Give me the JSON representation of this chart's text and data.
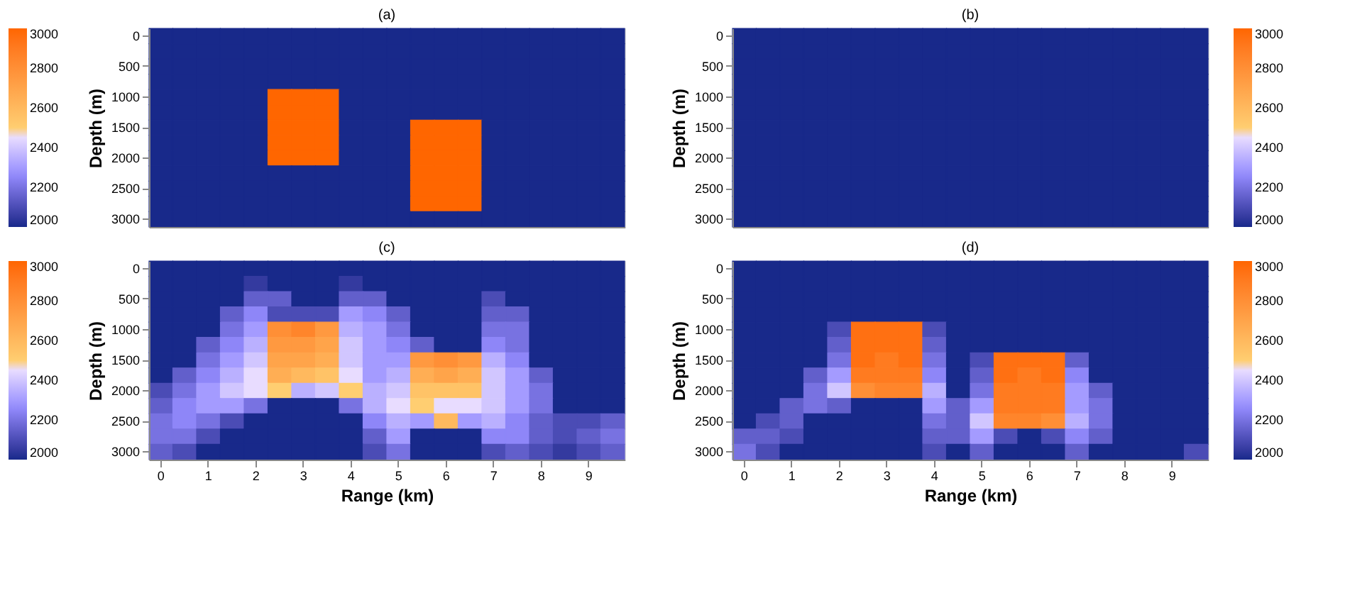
{
  "chart_data": [
    {
      "type": "heatmap",
      "title": "(a)",
      "ylabel": "Depth (m)",
      "tick_labels": "y",
      "clim": [
        2000,
        3000
      ],
      "cticks": [
        2000,
        2200,
        2400,
        2600,
        2800,
        3000
      ],
      "categories": [
        "0",
        null,
        "1",
        null,
        "2",
        null,
        "3",
        null,
        "4",
        null,
        "5",
        null,
        "6",
        null,
        "7",
        null,
        "8",
        null,
        "9",
        null
      ],
      "y_categories": [
        "0",
        null,
        "500",
        null,
        "1000",
        null,
        "1500",
        null,
        "2000",
        null,
        "2500",
        null,
        "3000"
      ],
      "cells": [
        [
          2000,
          2000,
          2000,
          2000,
          2000,
          2000,
          2000,
          2000,
          2000,
          2000,
          2000,
          2000,
          2000,
          2000,
          2000,
          2000,
          2000,
          2000,
          2000,
          2000
        ],
        [
          2000,
          2000,
          2000,
          2000,
          2000,
          2000,
          2000,
          2000,
          2000,
          2000,
          2000,
          2000,
          2000,
          2000,
          2000,
          2000,
          2000,
          2000,
          2000,
          2000
        ],
        [
          2000,
          2000,
          2000,
          2000,
          2000,
          2000,
          2000,
          2000,
          2000,
          2000,
          2000,
          2000,
          2000,
          2000,
          2000,
          2000,
          2000,
          2000,
          2000,
          2000
        ],
        [
          2000,
          2000,
          2000,
          2000,
          2000,
          2000,
          2000,
          2000,
          2000,
          2000,
          2000,
          2000,
          2000,
          2000,
          2000,
          2000,
          2000,
          2000,
          2000,
          2000
        ],
        [
          2000,
          2000,
          2000,
          2000,
          2000,
          3000,
          3000,
          3000,
          2000,
          2000,
          2000,
          2000,
          2000,
          2000,
          2000,
          2000,
          2000,
          2000,
          2000,
          2000
        ],
        [
          2000,
          2000,
          2000,
          2000,
          2000,
          3000,
          3000,
          3000,
          2000,
          2000,
          2000,
          2000,
          2000,
          2000,
          2000,
          2000,
          2000,
          2000,
          2000,
          2000
        ],
        [
          2000,
          2000,
          2000,
          2000,
          2000,
          3000,
          3000,
          3000,
          2000,
          2000,
          2000,
          3000,
          3000,
          3000,
          2000,
          2000,
          2000,
          2000,
          2000,
          2000
        ],
        [
          2000,
          2000,
          2000,
          2000,
          2000,
          3000,
          3000,
          3000,
          2000,
          2000,
          2000,
          3000,
          3000,
          3000,
          2000,
          2000,
          2000,
          2000,
          2000,
          2000
        ],
        [
          2000,
          2000,
          2000,
          2000,
          2000,
          3000,
          3000,
          3000,
          2000,
          2000,
          2000,
          3000,
          3000,
          3000,
          2000,
          2000,
          2000,
          2000,
          2000,
          2000
        ],
        [
          2000,
          2000,
          2000,
          2000,
          2000,
          2000,
          2000,
          2000,
          2000,
          2000,
          2000,
          3000,
          3000,
          3000,
          2000,
          2000,
          2000,
          2000,
          2000,
          2000
        ],
        [
          2000,
          2000,
          2000,
          2000,
          2000,
          2000,
          2000,
          2000,
          2000,
          2000,
          2000,
          3000,
          3000,
          3000,
          2000,
          2000,
          2000,
          2000,
          2000,
          2000
        ],
        [
          2000,
          2000,
          2000,
          2000,
          2000,
          2000,
          2000,
          2000,
          2000,
          2000,
          2000,
          3000,
          3000,
          3000,
          2000,
          2000,
          2000,
          2000,
          2000,
          2000
        ],
        [
          2000,
          2000,
          2000,
          2000,
          2000,
          2000,
          2000,
          2000,
          2000,
          2000,
          2000,
          2000,
          2000,
          2000,
          2000,
          2000,
          2000,
          2000,
          2000,
          2000
        ]
      ]
    },
    {
      "type": "heatmap",
      "title": "(b)",
      "ylabel": "Depth (m)",
      "tick_labels": "y",
      "clim": [
        2000,
        3000
      ],
      "cticks": [
        2000,
        2200,
        2400,
        2600,
        2800,
        3000
      ],
      "categories": [
        "0",
        null,
        "1",
        null,
        "2",
        null,
        "3",
        null,
        "4",
        null,
        "5",
        null,
        "6",
        null,
        "7",
        null,
        "8",
        null,
        "9",
        null
      ],
      "y_categories": [
        "0",
        null,
        "500",
        null,
        "1000",
        null,
        "1500",
        null,
        "2000",
        null,
        "2500",
        null,
        "3000"
      ],
      "cells": [
        [
          2000,
          2000,
          2000,
          2000,
          2000,
          2000,
          2000,
          2000,
          2000,
          2000,
          2000,
          2000,
          2000,
          2000,
          2000,
          2000,
          2000,
          2000,
          2000,
          2000
        ],
        [
          2000,
          2000,
          2000,
          2000,
          2000,
          2000,
          2000,
          2000,
          2000,
          2000,
          2000,
          2000,
          2000,
          2000,
          2000,
          2000,
          2000,
          2000,
          2000,
          2000
        ],
        [
          2000,
          2000,
          2000,
          2000,
          2000,
          2000,
          2000,
          2000,
          2000,
          2000,
          2000,
          2000,
          2000,
          2000,
          2000,
          2000,
          2000,
          2000,
          2000,
          2000
        ],
        [
          2000,
          2000,
          2000,
          2000,
          2000,
          2000,
          2000,
          2000,
          2000,
          2000,
          2000,
          2000,
          2000,
          2000,
          2000,
          2000,
          2000,
          2000,
          2000,
          2000
        ],
        [
          2000,
          2000,
          2000,
          2000,
          2000,
          2000,
          2000,
          2000,
          2000,
          2000,
          2000,
          2000,
          2000,
          2000,
          2000,
          2000,
          2000,
          2000,
          2000,
          2000
        ],
        [
          2000,
          2000,
          2000,
          2000,
          2000,
          2000,
          2000,
          2000,
          2000,
          2000,
          2000,
          2000,
          2000,
          2000,
          2000,
          2000,
          2000,
          2000,
          2000,
          2000
        ],
        [
          2000,
          2000,
          2000,
          2000,
          2000,
          2000,
          2000,
          2000,
          2000,
          2000,
          2000,
          2000,
          2000,
          2000,
          2000,
          2000,
          2000,
          2000,
          2000,
          2000
        ],
        [
          2000,
          2000,
          2000,
          2000,
          2000,
          2000,
          2000,
          2000,
          2000,
          2000,
          2000,
          2000,
          2000,
          2000,
          2000,
          2000,
          2000,
          2000,
          2000,
          2000
        ],
        [
          2000,
          2000,
          2000,
          2000,
          2000,
          2000,
          2000,
          2000,
          2000,
          2000,
          2000,
          2000,
          2000,
          2000,
          2000,
          2000,
          2000,
          2000,
          2000,
          2000
        ],
        [
          2000,
          2000,
          2000,
          2000,
          2000,
          2000,
          2000,
          2000,
          2000,
          2000,
          2000,
          2000,
          2000,
          2000,
          2000,
          2000,
          2000,
          2000,
          2000,
          2000
        ],
        [
          2000,
          2000,
          2000,
          2000,
          2000,
          2000,
          2000,
          2000,
          2000,
          2000,
          2000,
          2000,
          2000,
          2000,
          2000,
          2000,
          2000,
          2000,
          2000,
          2000
        ],
        [
          2000,
          2000,
          2000,
          2000,
          2000,
          2000,
          2000,
          2000,
          2000,
          2000,
          2000,
          2000,
          2000,
          2000,
          2000,
          2000,
          2000,
          2000,
          2000,
          2000
        ],
        [
          2000,
          2000,
          2000,
          2000,
          2000,
          2000,
          2000,
          2000,
          2000,
          2000,
          2000,
          2000,
          2000,
          2000,
          2000,
          2000,
          2000,
          2000,
          2000,
          2000
        ]
      ]
    },
    {
      "type": "heatmap",
      "title": "(c)",
      "xlabel": "Range (km)",
      "ylabel": "Depth (m)",
      "clim": [
        2000,
        3000
      ],
      "cticks": [
        2000,
        2200,
        2400,
        2600,
        2800,
        3000
      ],
      "categories": [
        "0",
        null,
        "1",
        null,
        "2",
        null,
        "3",
        null,
        "4",
        null,
        "5",
        null,
        "6",
        null,
        "7",
        null,
        "8",
        null,
        "9",
        null
      ],
      "y_categories": [
        "0",
        null,
        "500",
        null,
        "1000",
        null,
        "1500",
        null,
        "2000",
        null,
        "2500",
        null,
        "3000"
      ],
      "cells": [
        [
          2000,
          2000,
          2000,
          2000,
          2000,
          2000,
          2000,
          2000,
          2000,
          2000,
          2000,
          2000,
          2000,
          2000,
          2000,
          2000,
          2000,
          2000,
          2000,
          2000
        ],
        [
          2000,
          2000,
          2000,
          2000,
          2050,
          2000,
          2000,
          2000,
          2050,
          2000,
          2000,
          2000,
          2000,
          2000,
          2000,
          2000,
          2000,
          2000,
          2000,
          2000
        ],
        [
          2000,
          2000,
          2000,
          2000,
          2150,
          2150,
          2000,
          2000,
          2150,
          2150,
          2000,
          2000,
          2000,
          2000,
          2100,
          2000,
          2000,
          2000,
          2000,
          2000
        ],
        [
          2000,
          2000,
          2000,
          2150,
          2250,
          2100,
          2100,
          2100,
          2300,
          2250,
          2150,
          2000,
          2000,
          2000,
          2150,
          2150,
          2000,
          2000,
          2000,
          2000
        ],
        [
          2000,
          2000,
          2000,
          2200,
          2300,
          2800,
          2850,
          2750,
          2350,
          2300,
          2200,
          2000,
          2000,
          2000,
          2200,
          2200,
          2000,
          2000,
          2000,
          2000
        ],
        [
          2000,
          2000,
          2150,
          2250,
          2350,
          2750,
          2750,
          2700,
          2400,
          2300,
          2250,
          2150,
          2000,
          2000,
          2250,
          2200,
          2000,
          2000,
          2000,
          2000
        ],
        [
          2000,
          2000,
          2200,
          2300,
          2400,
          2700,
          2700,
          2650,
          2400,
          2300,
          2300,
          2750,
          2800,
          2750,
          2350,
          2250,
          2000,
          2000,
          2000,
          2000
        ],
        [
          2000,
          2150,
          2250,
          2350,
          2450,
          2650,
          2600,
          2550,
          2450,
          2300,
          2350,
          2650,
          2700,
          2650,
          2400,
          2300,
          2150,
          2000,
          2000,
          2000
        ],
        [
          2100,
          2200,
          2300,
          2400,
          2450,
          2500,
          2350,
          2400,
          2500,
          2350,
          2400,
          2550,
          2550,
          2550,
          2400,
          2300,
          2200,
          2000,
          2000,
          2000
        ],
        [
          2150,
          2250,
          2300,
          2300,
          2200,
          2000,
          2000,
          2000,
          2200,
          2350,
          2450,
          2500,
          2450,
          2450,
          2400,
          2300,
          2200,
          2000,
          2000,
          2000
        ],
        [
          2200,
          2250,
          2200,
          2100,
          2000,
          2000,
          2000,
          2000,
          2000,
          2250,
          2350,
          2300,
          2600,
          2300,
          2350,
          2250,
          2150,
          2100,
          2100,
          2150
        ],
        [
          2200,
          2200,
          2100,
          2000,
          2000,
          2000,
          2000,
          2000,
          2000,
          2150,
          2300,
          2000,
          2000,
          2000,
          2250,
          2250,
          2150,
          2100,
          2150,
          2200
        ],
        [
          2150,
          2100,
          2000,
          2000,
          2000,
          2000,
          2000,
          2000,
          2000,
          2100,
          2200,
          2000,
          2000,
          2000,
          2100,
          2150,
          2100,
          2050,
          2100,
          2150
        ]
      ]
    },
    {
      "type": "heatmap",
      "title": "(d)",
      "xlabel": "Range (km)",
      "ylabel": "Depth (m)",
      "clim": [
        2000,
        3000
      ],
      "cticks": [
        2000,
        2200,
        2400,
        2600,
        2800,
        3000
      ],
      "categories": [
        "0",
        null,
        "1",
        null,
        "2",
        null,
        "3",
        null,
        "4",
        null,
        "5",
        null,
        "6",
        null,
        "7",
        null,
        "8",
        null,
        "9",
        null
      ],
      "y_categories": [
        "0",
        null,
        "500",
        null,
        "1000",
        null,
        "1500",
        null,
        "2000",
        null,
        "2500",
        null,
        "3000"
      ],
      "cells": [
        [
          2000,
          2000,
          2000,
          2000,
          2000,
          2000,
          2000,
          2000,
          2000,
          2000,
          2000,
          2000,
          2000,
          2000,
          2000,
          2000,
          2000,
          2000,
          2000,
          2000
        ],
        [
          2000,
          2000,
          2000,
          2000,
          2000,
          2000,
          2000,
          2000,
          2000,
          2000,
          2000,
          2000,
          2000,
          2000,
          2000,
          2000,
          2000,
          2000,
          2000,
          2000
        ],
        [
          2000,
          2000,
          2000,
          2000,
          2000,
          2000,
          2000,
          2000,
          2000,
          2000,
          2000,
          2000,
          2000,
          2000,
          2000,
          2000,
          2000,
          2000,
          2000,
          2000
        ],
        [
          2000,
          2000,
          2000,
          2000,
          2000,
          2000,
          2000,
          2000,
          2000,
          2000,
          2000,
          2000,
          2000,
          2000,
          2000,
          2000,
          2000,
          2000,
          2000,
          2000
        ],
        [
          2000,
          2000,
          2000,
          2000,
          2100,
          2950,
          2950,
          2950,
          2100,
          2000,
          2000,
          2000,
          2000,
          2000,
          2000,
          2000,
          2000,
          2000,
          2000,
          2000
        ],
        [
          2000,
          2000,
          2000,
          2000,
          2150,
          2950,
          2950,
          2950,
          2150,
          2000,
          2000,
          2000,
          2000,
          2000,
          2000,
          2000,
          2000,
          2000,
          2000,
          2000
        ],
        [
          2000,
          2000,
          2000,
          2000,
          2200,
          2950,
          2900,
          2950,
          2200,
          2000,
          2100,
          2950,
          2950,
          2950,
          2150,
          2000,
          2000,
          2000,
          2000,
          2000
        ],
        [
          2000,
          2000,
          2000,
          2150,
          2300,
          2900,
          2900,
          2900,
          2250,
          2000,
          2150,
          2950,
          2900,
          2950,
          2250,
          2000,
          2000,
          2000,
          2000,
          2000
        ],
        [
          2000,
          2000,
          2000,
          2200,
          2400,
          2800,
          2850,
          2850,
          2350,
          2000,
          2200,
          2900,
          2900,
          2900,
          2300,
          2150,
          2000,
          2000,
          2000,
          2000
        ],
        [
          2000,
          2000,
          2150,
          2200,
          2150,
          2000,
          2000,
          2000,
          2300,
          2150,
          2300,
          2900,
          2900,
          2900,
          2300,
          2200,
          2000,
          2000,
          2000,
          2000
        ],
        [
          2000,
          2100,
          2150,
          2000,
          2000,
          2000,
          2000,
          2000,
          2200,
          2150,
          2400,
          2850,
          2850,
          2800,
          2350,
          2200,
          2000,
          2000,
          2000,
          2000
        ],
        [
          2150,
          2150,
          2100,
          2000,
          2000,
          2000,
          2000,
          2000,
          2150,
          2150,
          2300,
          2100,
          2000,
          2100,
          2250,
          2150,
          2000,
          2000,
          2000,
          2000
        ],
        [
          2200,
          2100,
          2000,
          2000,
          2000,
          2000,
          2000,
          2000,
          2100,
          2000,
          2150,
          2000,
          2000,
          2000,
          2150,
          2000,
          2000,
          2000,
          2000,
          2100
        ]
      ]
    }
  ]
}
